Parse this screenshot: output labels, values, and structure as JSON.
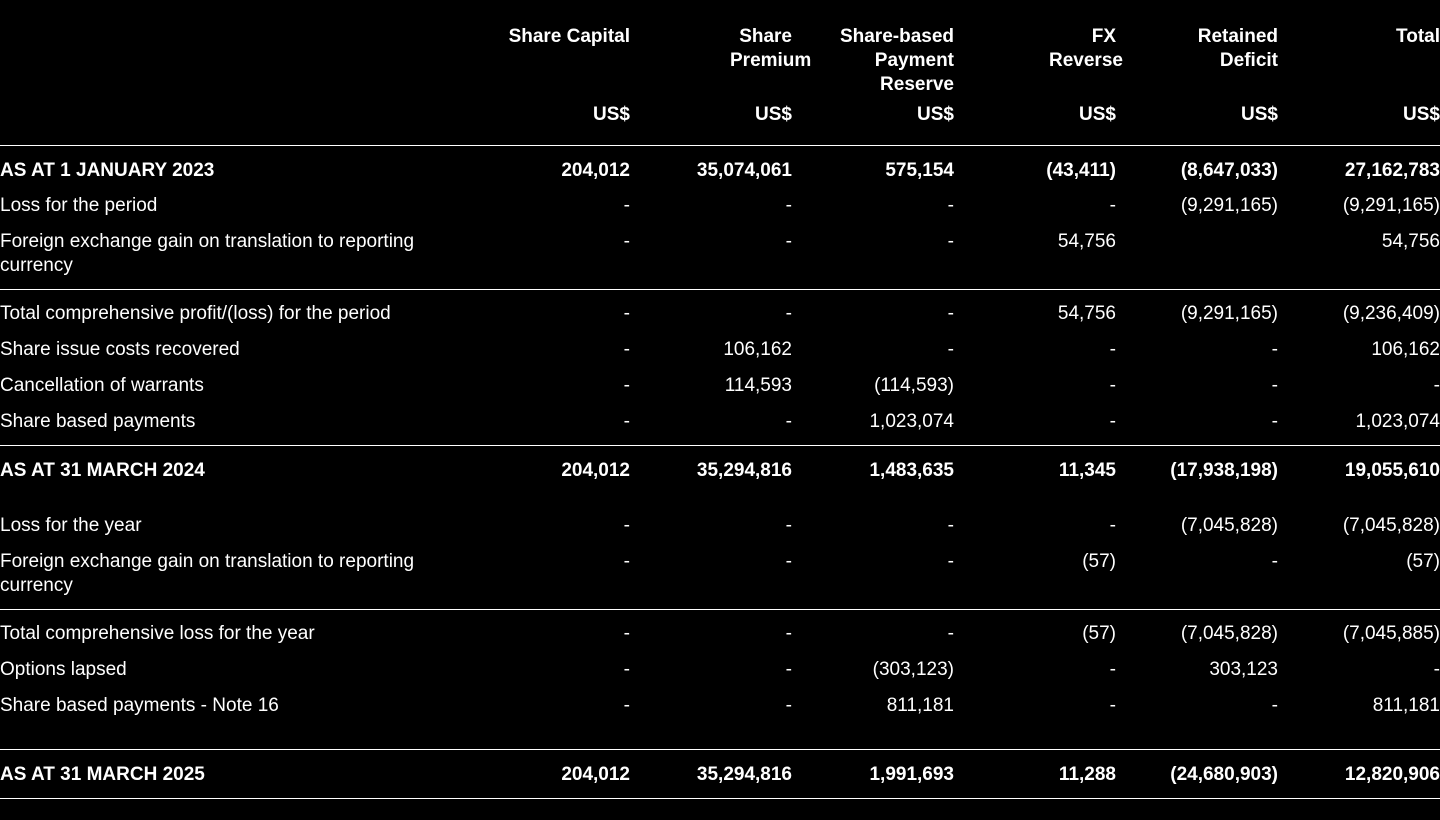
{
  "columns": [
    "Share Capital",
    "Share Premium",
    "Share-based Payment Reserve",
    "FX Reverse",
    "Retained Deficit",
    "Total"
  ],
  "units": [
    "US$",
    "US$",
    "US$",
    "US$",
    "US$",
    "US$"
  ],
  "rows": [
    {
      "label": "AS AT 1 JANUARY 2023",
      "values": [
        "204,012",
        "35,074,061",
        "575,154",
        "(43,411)",
        "(8,647,033)",
        "27,162,783"
      ]
    },
    {
      "label": "Loss for the period",
      "values": [
        "-",
        "-",
        "-",
        "-",
        "(9,291,165)",
        "(9,291,165)"
      ]
    },
    {
      "label": "Foreign exchange gain on translation to reporting currency",
      "values": [
        "-",
        "-",
        "-",
        "54,756",
        "",
        "54,756"
      ]
    },
    {
      "label": "Total comprehensive profit/(loss) for the period",
      "values": [
        "-",
        "-",
        "-",
        "54,756",
        "(9,291,165)",
        "(9,236,409)"
      ]
    },
    {
      "label": "Share issue costs recovered",
      "values": [
        "-",
        "106,162",
        "-",
        "-",
        "-",
        "106,162"
      ]
    },
    {
      "label": "Cancellation of warrants",
      "values": [
        "-",
        "114,593",
        "(114,593)",
        "-",
        "-",
        "-"
      ]
    },
    {
      "label": "Share based payments",
      "values": [
        "-",
        "-",
        "1,023,074",
        "-",
        "-",
        "1,023,074"
      ]
    },
    {
      "label": "AS AT 31 MARCH 2024",
      "values": [
        "204,012",
        "35,294,816",
        "1,483,635",
        "11,345",
        "(17,938,198)",
        "19,055,610"
      ]
    },
    {
      "label": "Loss for the year",
      "values": [
        "-",
        "-",
        "-",
        "-",
        "(7,045,828)",
        "(7,045,828)"
      ]
    },
    {
      "label": "Foreign exchange gain on translation to reporting currency",
      "values": [
        "-",
        "-",
        "-",
        "(57)",
        "-",
        "(57)"
      ]
    },
    {
      "label": "Total comprehensive loss for the year",
      "values": [
        "-",
        "-",
        "-",
        "(57)",
        "(7,045,828)",
        "(7,045,885)"
      ]
    },
    {
      "label": "Options lapsed",
      "values": [
        "-",
        "-",
        "(303,123)",
        "-",
        "303,123",
        "-"
      ]
    },
    {
      "label": "Share based payments - Note 16",
      "values": [
        "-",
        "-",
        "811,181",
        "-",
        "-",
        "811,181"
      ]
    },
    {
      "label": "AS AT 31 MARCH 2025",
      "values": [
        "204,012",
        "35,294,816",
        "1,991,693",
        "11,288",
        "(24,680,903)",
        "12,820,906"
      ]
    }
  ]
}
